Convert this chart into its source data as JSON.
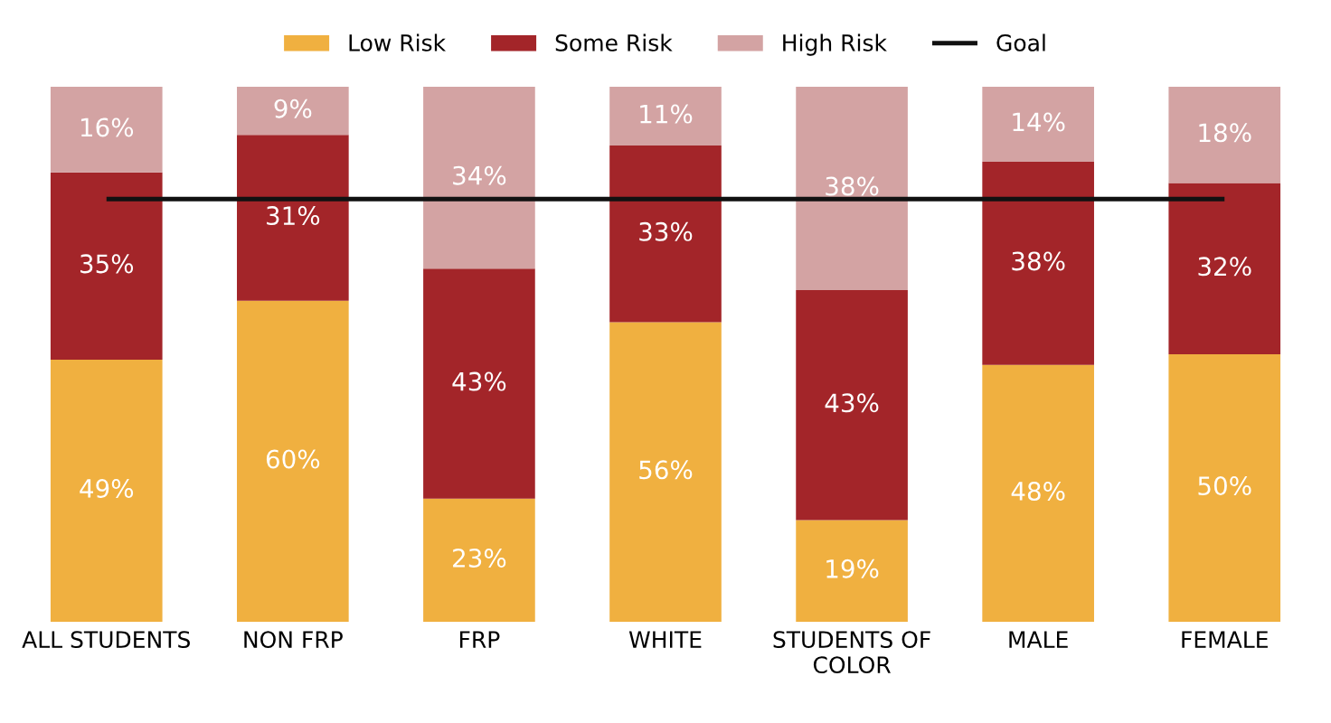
{
  "chart_data": {
    "type": "bar",
    "stacked": true,
    "categories": [
      "ALL STUDENTS",
      "NON FRP",
      "FRP",
      "WHITE",
      "STUDENTS OF\nCOLOR",
      "MALE",
      "FEMALE"
    ],
    "series": [
      {
        "name": "Low Risk",
        "color": "#f0b040",
        "values": [
          49,
          60,
          23,
          56,
          19,
          48,
          50
        ],
        "value_labels": [
          "49%",
          "60%",
          "23%",
          "56%",
          "19%",
          "48%",
          "50%"
        ]
      },
      {
        "name": "Some Risk",
        "color": "#a32529",
        "values": [
          35,
          31,
          43,
          33,
          43,
          38,
          32
        ],
        "value_labels": [
          "35%",
          "31%",
          "43%",
          "33%",
          "43%",
          "38%",
          "32%"
        ]
      },
      {
        "name": "High Risk",
        "color": "#d3a3a3",
        "values": [
          16,
          9,
          34,
          11,
          38,
          14,
          18
        ],
        "value_labels": [
          "16%",
          "9%",
          "34%",
          "11%",
          "38%",
          "14%",
          "18%"
        ]
      }
    ],
    "ref_lines": [
      {
        "axis": "y",
        "value": 79,
        "label": "Goal",
        "color": "#111111"
      }
    ],
    "legend": "top",
    "tick_labels": "x",
    "grid": false
  }
}
